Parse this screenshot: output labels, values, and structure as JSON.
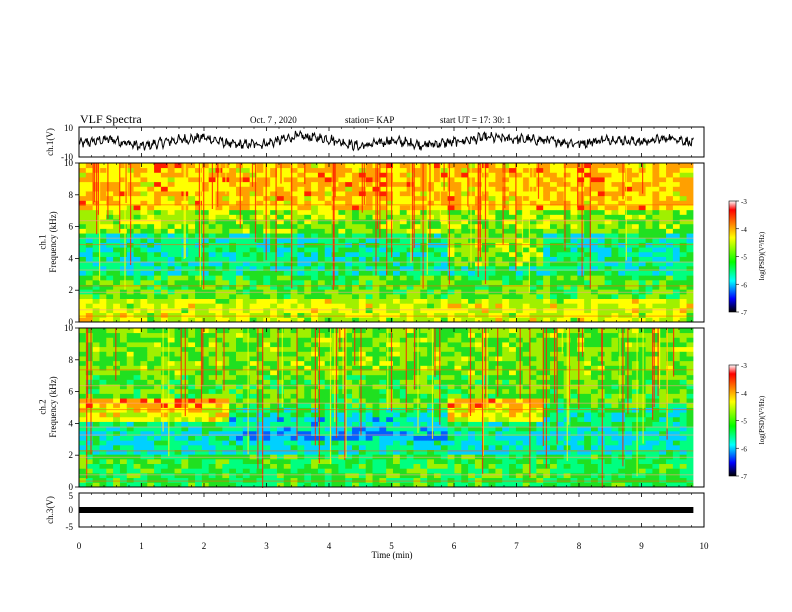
{
  "header": {
    "title": "VLF Spectra",
    "date": "Oct. 7 , 2020",
    "station": "station= KAP",
    "start": "start  UT =   17: 30: 1"
  },
  "colorbar": {
    "label": "log(PSD)(V²/Hz)",
    "ticks": [
      "-3",
      "-4",
      "-5",
      "-6",
      "-7"
    ],
    "colors": [
      "#ffffff",
      "#ff0000",
      "#ffff00",
      "#00ff00",
      "#00ffff",
      "#0000ff",
      "#000000"
    ]
  },
  "chart_data": [
    {
      "type": "line",
      "panel": "ch1-waveform",
      "ylabel": "ch.1(V)",
      "ylim": [
        -10,
        10
      ],
      "yticks": [
        "10",
        "-10"
      ],
      "x": [
        0,
        0.5,
        1,
        1.5,
        2,
        2.5,
        3,
        3.5,
        4,
        4.5,
        5,
        5.5,
        6,
        6.5,
        7,
        7.5,
        8,
        8.5,
        9,
        9.5,
        9.83
      ],
      "y": [
        -1,
        2,
        -3,
        1,
        3,
        -2,
        -1,
        4,
        2,
        -3,
        1,
        -2,
        0,
        3,
        2,
        1,
        -1,
        2,
        0,
        3,
        -1
      ]
    },
    {
      "type": "heatmap",
      "panel": "ch1-spectrogram",
      "ylabel": "ch.1\nFrequency (kHz)",
      "xlim": [
        0,
        10
      ],
      "ylim": [
        0,
        10
      ],
      "yticks": [
        "0",
        "2",
        "4",
        "6",
        "8",
        "10"
      ],
      "clim": [
        -7,
        -3
      ]
    },
    {
      "type": "heatmap",
      "panel": "ch2-spectrogram",
      "ylabel": "ch.2\nFrequency (kHz)",
      "xlim": [
        0,
        10
      ],
      "ylim": [
        0,
        10
      ],
      "yticks": [
        "0",
        "2",
        "4",
        "6",
        "8",
        "10"
      ],
      "clim": [
        -7,
        -3
      ]
    },
    {
      "type": "line",
      "panel": "ch3-waveform",
      "ylabel": "ch.3(V)",
      "ylim": [
        -5,
        5
      ],
      "yticks": [
        "5",
        "0",
        "-5"
      ],
      "xlabel": "Time  (min)",
      "xticks": [
        "0",
        "1",
        "2",
        "3",
        "4",
        "5",
        "6",
        "7",
        "8",
        "9",
        "10"
      ],
      "x": [
        0,
        9.83
      ],
      "y": [
        0,
        0
      ]
    }
  ]
}
